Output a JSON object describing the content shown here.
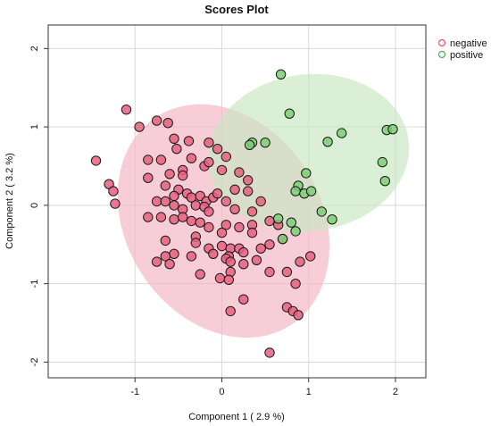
{
  "chart_data": {
    "type": "scatter",
    "title": "Scores Plot",
    "xlabel": "Component 1 ( 2.9 %)",
    "ylabel": "Component 2 ( 3.2 %)",
    "xlim": [
      -2.0,
      2.35
    ],
    "ylim": [
      -2.2,
      2.3
    ],
    "x_ticks": [
      -1,
      0,
      1,
      2
    ],
    "y_ticks": [
      -2,
      -1,
      0,
      1,
      2
    ],
    "grid": true,
    "legend_position": "top-right",
    "colors": {
      "negative": "#e8506e",
      "positive": "#4caf50",
      "negative_fill": "#e8607f",
      "positive_fill": "#7ccf75",
      "negative_ellipse": "#f2b3c3",
      "positive_ellipse": "#c8e6c2"
    },
    "ellipses": [
      {
        "series": "negative",
        "center": [
          0.02,
          -0.2
        ],
        "rx": 1.18,
        "ry": 1.5,
        "angle_deg": 33
      },
      {
        "series": "positive",
        "center": [
          1.0,
          0.67
        ],
        "rx": 1.22,
        "ry": 0.95,
        "angle_deg": 7
      }
    ],
    "series": [
      {
        "name": "negative",
        "points": [
          [
            -1.45,
            0.57
          ],
          [
            -1.1,
            1.22
          ],
          [
            -0.95,
            1.0
          ],
          [
            -0.75,
            1.08
          ],
          [
            -0.62,
            1.05
          ],
          [
            -0.55,
            0.85
          ],
          [
            -0.38,
            0.82
          ],
          [
            -0.52,
            0.72
          ],
          [
            -0.15,
            0.8
          ],
          [
            -0.05,
            0.72
          ],
          [
            0.05,
            0.62
          ],
          [
            -0.85,
            0.58
          ],
          [
            -0.7,
            0.58
          ],
          [
            -0.35,
            0.6
          ],
          [
            -1.3,
            0.27
          ],
          [
            -1.25,
            0.18
          ],
          [
            -1.23,
            0.02
          ],
          [
            -0.85,
            0.35
          ],
          [
            -0.6,
            0.4
          ],
          [
            -0.45,
            0.45
          ],
          [
            -0.45,
            0.38
          ],
          [
            -0.2,
            0.5
          ],
          [
            -0.15,
            0.55
          ],
          [
            0.0,
            0.45
          ],
          [
            0.2,
            0.42
          ],
          [
            0.3,
            0.32
          ],
          [
            -0.65,
            0.25
          ],
          [
            -0.5,
            0.2
          ],
          [
            -0.55,
            0.12
          ],
          [
            -0.4,
            0.15
          ],
          [
            -0.35,
            0.1
          ],
          [
            -0.25,
            0.12
          ],
          [
            -0.18,
            0.05
          ],
          [
            -0.1,
            0.1
          ],
          [
            -0.05,
            0.15
          ],
          [
            0.15,
            0.2
          ],
          [
            0.3,
            0.18
          ],
          [
            -0.75,
            0.05
          ],
          [
            -0.65,
            0.05
          ],
          [
            -0.55,
            0.0
          ],
          [
            -0.45,
            -0.05
          ],
          [
            -0.3,
            0.0
          ],
          [
            -0.2,
            -0.02
          ],
          [
            -0.15,
            -0.08
          ],
          [
            0.05,
            0.05
          ],
          [
            0.15,
            -0.05
          ],
          [
            0.35,
            -0.08
          ],
          [
            0.45,
            0.05
          ],
          [
            -0.85,
            -0.15
          ],
          [
            -0.7,
            -0.15
          ],
          [
            -0.55,
            -0.18
          ],
          [
            -0.45,
            -0.15
          ],
          [
            -0.35,
            -0.2
          ],
          [
            -0.25,
            -0.22
          ],
          [
            -0.15,
            -0.28
          ],
          [
            0.05,
            -0.25
          ],
          [
            0.2,
            -0.28
          ],
          [
            0.35,
            -0.25
          ],
          [
            0.55,
            -0.2
          ],
          [
            0.65,
            -0.25
          ],
          [
            0.0,
            -0.35
          ],
          [
            0.35,
            -0.35
          ],
          [
            -0.3,
            -0.4
          ],
          [
            -0.65,
            -0.45
          ],
          [
            -0.3,
            -0.48
          ],
          [
            -0.15,
            -0.55
          ],
          [
            0.0,
            -0.52
          ],
          [
            0.1,
            -0.55
          ],
          [
            0.2,
            -0.55
          ],
          [
            0.08,
            -0.65
          ],
          [
            0.25,
            -0.6
          ],
          [
            0.45,
            -0.55
          ],
          [
            0.55,
            -0.5
          ],
          [
            0.7,
            -0.43
          ],
          [
            -0.55,
            -0.62
          ],
          [
            -0.65,
            -0.65
          ],
          [
            -0.75,
            -0.72
          ],
          [
            -0.6,
            -0.75
          ],
          [
            -0.35,
            -0.65
          ],
          [
            -0.1,
            -0.62
          ],
          [
            0.05,
            -0.68
          ],
          [
            0.1,
            -0.72
          ],
          [
            0.1,
            -0.85
          ],
          [
            0.25,
            -0.75
          ],
          [
            -0.25,
            -0.88
          ],
          [
            -0.02,
            -0.93
          ],
          [
            0.4,
            -0.7
          ],
          [
            0.55,
            -0.85
          ],
          [
            0.75,
            -0.85
          ],
          [
            0.9,
            -0.72
          ],
          [
            1.02,
            -0.65
          ],
          [
            0.85,
            -1.0
          ],
          [
            0.08,
            -0.95
          ],
          [
            0.25,
            -1.2
          ],
          [
            0.1,
            -1.35
          ],
          [
            0.75,
            -1.3
          ],
          [
            0.82,
            -1.35
          ],
          [
            0.88,
            -1.4
          ],
          [
            0.55,
            -1.88
          ]
        ]
      },
      {
        "name": "positive",
        "points": [
          [
            0.68,
            1.67
          ],
          [
            0.78,
            1.17
          ],
          [
            1.38,
            0.92
          ],
          [
            1.22,
            0.81
          ],
          [
            1.9,
            0.96
          ],
          [
            1.97,
            0.97
          ],
          [
            0.35,
            0.8
          ],
          [
            0.5,
            0.8
          ],
          [
            0.32,
            0.77
          ],
          [
            1.85,
            0.55
          ],
          [
            0.97,
            0.41
          ],
          [
            1.88,
            0.31
          ],
          [
            0.88,
            0.25
          ],
          [
            0.85,
            0.18
          ],
          [
            0.95,
            0.15
          ],
          [
            1.03,
            0.18
          ],
          [
            1.15,
            -0.08
          ],
          [
            1.27,
            -0.18
          ],
          [
            0.65,
            -0.17
          ],
          [
            0.85,
            -0.33
          ],
          [
            0.8,
            -0.22
          ],
          [
            0.7,
            -0.43
          ]
        ]
      }
    ]
  }
}
